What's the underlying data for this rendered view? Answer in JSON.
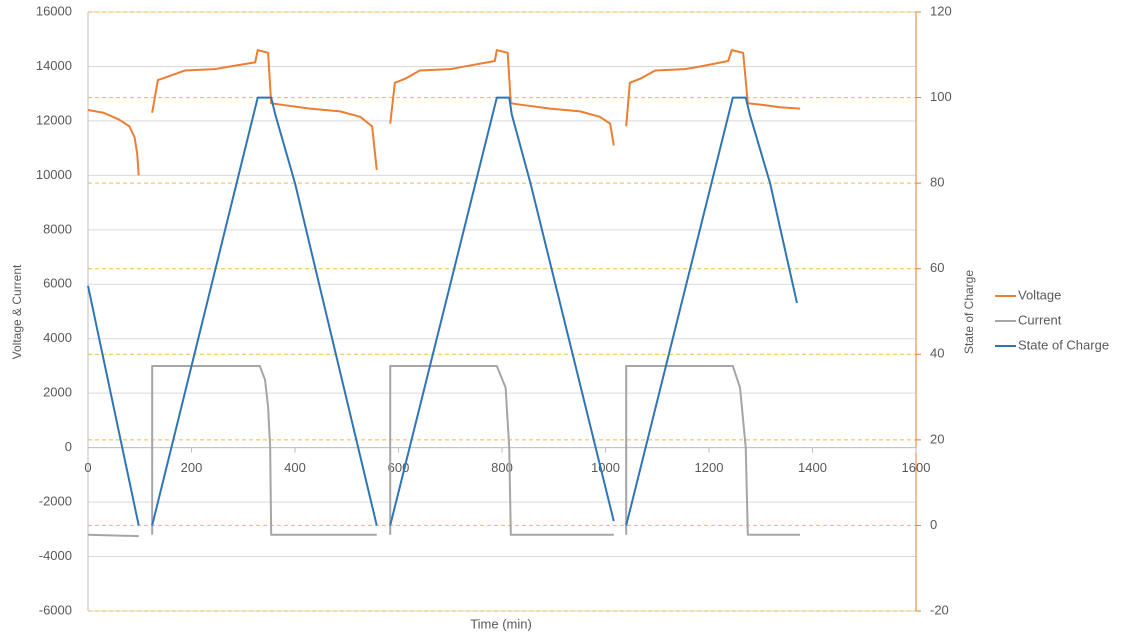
{
  "chart_data": {
    "type": "line",
    "xlabel": "Time (min)",
    "ylabel": "Voltage & Current",
    "y2label": "State of Charge",
    "xlim": [
      0,
      1600
    ],
    "xticks": [
      0,
      200,
      400,
      600,
      800,
      1000,
      1200,
      1400,
      1600
    ],
    "ylim": [
      -6000,
      16000
    ],
    "yticks": [
      -6000,
      -4000,
      -2000,
      0,
      2000,
      4000,
      6000,
      8000,
      10000,
      12000,
      14000,
      16000
    ],
    "y2lim": [
      -20,
      120
    ],
    "y2ticks": [
      -20,
      0,
      20,
      40,
      60,
      80,
      100,
      120
    ],
    "grid": true,
    "y2grid": true,
    "y2color": "#ED7D31",
    "legend": "right",
    "series": [
      {
        "name": "Voltage",
        "color": "#ED7D31",
        "x": [
          0,
          30,
          60,
          80,
          90,
          95,
          98,
          null,
          124,
          135,
          158,
          187,
          245,
          274,
          323,
          328,
          348,
          354,
          371,
          429,
          487,
          526,
          549,
          558,
          null,
          584,
          593,
          613,
          641,
          700,
          728,
          786,
          790,
          811,
          817,
          834,
          893,
          951,
          989,
          1009,
          1016,
          null,
          1040,
          1047,
          1067,
          1096,
          1153,
          1183,
          1237,
          1244,
          1266,
          1275,
          1299,
          1337,
          1376
        ],
        "values": [
          12400,
          12300,
          12050,
          11800,
          11400,
          10800,
          10000,
          null,
          12300,
          13500,
          13650,
          13850,
          13900,
          14000,
          14150,
          14600,
          14500,
          12650,
          12600,
          12450,
          12350,
          12150,
          11800,
          10200,
          null,
          11900,
          13400,
          13550,
          13850,
          13900,
          14000,
          14200,
          14600,
          14500,
          12650,
          12600,
          12450,
          12350,
          12150,
          11900,
          11100,
          null,
          11800,
          13400,
          13550,
          13850,
          13900,
          14000,
          14200,
          14600,
          14500,
          12650,
          12600,
          12500,
          12450
        ]
      },
      {
        "name": "Current",
        "color": "#A5A5A5",
        "x": [
          0,
          98,
          null,
          124,
          124,
          332,
          342,
          348,
          352,
          354,
          558,
          null,
          584,
          584,
          790,
          807,
          814,
          817,
          1016,
          null,
          1040,
          1040,
          1246,
          1260,
          1271,
          1275,
          1376
        ],
        "values": [
          -3200,
          -3250,
          null,
          -3200,
          3000,
          3000,
          2500,
          1500,
          0,
          -3200,
          -3200,
          null,
          -3200,
          3000,
          3000,
          2200,
          0,
          -3200,
          -3200,
          null,
          -3200,
          3000,
          3000,
          2200,
          0,
          -3200,
          -3200
        ]
      },
      {
        "name": "State of Charge",
        "color": "#2E75B6",
        "axis": "y2",
        "x": [
          0,
          98,
          null,
          124,
          328,
          354,
          362,
          400,
          558,
          null,
          584,
          790,
          814,
          819,
          855,
          1016,
          null,
          1040,
          1246,
          1271,
          1279,
          1318,
          1370
        ],
        "values": [
          56,
          0,
          null,
          0,
          100,
          100,
          96,
          80,
          0,
          null,
          0,
          100,
          100,
          96,
          80,
          1,
          null,
          0,
          100,
          100,
          96,
          80,
          52
        ]
      }
    ]
  }
}
